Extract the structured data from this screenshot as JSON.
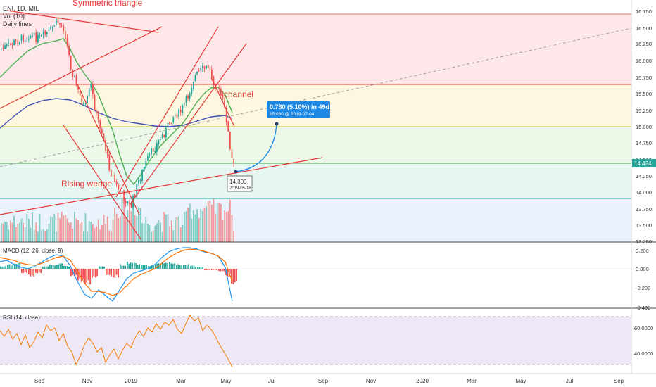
{
  "header": {
    "symbol_line": "ENI, 1D, MIL",
    "vol_label": "Vol (10)",
    "daily_lines": "Daily lines"
  },
  "annotations": {
    "symmetric_triangle": "Symmetric triangle",
    "channel": "channel",
    "rising_wedge": "Rising wedge"
  },
  "price_axis": {
    "ticks": [
      "16.750",
      "16.500",
      "16.250",
      "16.000",
      "15.750",
      "15.500",
      "15.250",
      "15.000",
      "14.750",
      "14.500",
      "14.250",
      "14.000",
      "13.750",
      "13.500",
      "13.250"
    ],
    "current_price": "14.424",
    "current_color": "#26a69a"
  },
  "projection": {
    "label_main": "0.730 (5.10%) in 49d",
    "label_sub": "15.030  @ 2019-07-04",
    "color": "#1e88e5"
  },
  "marker": {
    "price": "14.300",
    "date": "2019-05-16"
  },
  "macd": {
    "label": "MACD (12, 26, close, 9)",
    "ticks": [
      "0.200",
      "0.000",
      "-0.200",
      "-0.400"
    ]
  },
  "rsi": {
    "label": "RSI (14, close)",
    "ticks": [
      "60.0000",
      "40.0000"
    ]
  },
  "time_axis": {
    "labels": [
      "Sep",
      "Nov",
      "2019",
      "Mar",
      "May",
      "Jul",
      "Sep",
      "Nov",
      "2020",
      "Mar",
      "May",
      "Jul",
      "Sep"
    ]
  },
  "colors": {
    "up": "#26a69a",
    "down": "#ef5350",
    "trend": "#e53935",
    "ma_fast": "#4caf50",
    "ma_slow": "#3f51b5",
    "rsi_line": "#f57c00"
  }
}
